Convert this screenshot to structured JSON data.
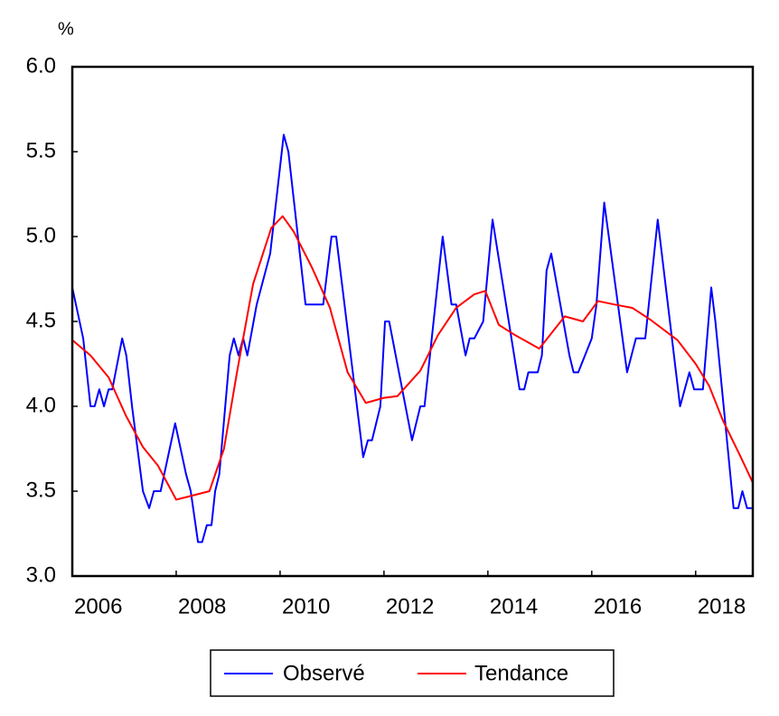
{
  "chart_data": {
    "type": "line",
    "y_unit_label": "%",
    "xlim": [
      2006,
      2019.1
    ],
    "xticks": [
      2006,
      2008,
      2010,
      2012,
      2014,
      2016,
      2018
    ],
    "ylim": [
      3.0,
      6.0
    ],
    "yticks": [
      {
        "value": 3.0,
        "label": "3.0"
      },
      {
        "value": 3.5,
        "label": "3.5"
      },
      {
        "value": 4.0,
        "label": "4.0"
      },
      {
        "value": 4.5,
        "label": "4.5"
      },
      {
        "value": 5.0,
        "label": "5.0"
      },
      {
        "value": 5.5,
        "label": "5.5"
      },
      {
        "value": 6.0,
        "label": "6.0"
      }
    ],
    "grid": false,
    "legend": "bottom",
    "series": [
      {
        "name": "Observé",
        "color": "#0000ff",
        "x": [
          2006.0,
          2006.21,
          2006.35,
          2006.43,
          2006.52,
          2006.61,
          2006.7,
          2006.77,
          2006.96,
          2007.04,
          2007.15,
          2007.36,
          2007.48,
          2007.57,
          2007.7,
          2007.98,
          2008.19,
          2008.28,
          2008.42,
          2008.5,
          2008.59,
          2008.68,
          2008.75,
          2008.83,
          2009.03,
          2009.11,
          2009.2,
          2009.29,
          2009.37,
          2009.55,
          2009.81,
          2010.07,
          2010.16,
          2010.49,
          2010.83,
          2010.99,
          2011.08,
          2011.6,
          2011.69,
          2011.77,
          2011.93,
          2012.02,
          2012.1,
          2012.54,
          2012.7,
          2012.78,
          2013.13,
          2013.3,
          2013.39,
          2013.57,
          2013.65,
          2013.74,
          2013.91,
          2014.09,
          2014.61,
          2014.7,
          2014.78,
          2014.96,
          2015.04,
          2015.13,
          2015.22,
          2015.57,
          2015.65,
          2015.74,
          2016.0,
          2016.09,
          2016.24,
          2016.68,
          2016.85,
          2017.03,
          2017.27,
          2017.7,
          2017.88,
          2017.97,
          2018.14,
          2018.3,
          2018.38,
          2018.73,
          2018.82,
          2018.9,
          2018.99,
          2019.08
        ],
        "values": [
          4.7,
          4.4,
          4.0,
          4.0,
          4.1,
          4.0,
          4.1,
          4.1,
          4.4,
          4.3,
          4.0,
          3.5,
          3.4,
          3.5,
          3.5,
          3.9,
          3.6,
          3.5,
          3.2,
          3.2,
          3.3,
          3.3,
          3.5,
          3.6,
          4.3,
          4.4,
          4.3,
          4.4,
          4.3,
          4.6,
          4.9,
          5.6,
          5.5,
          4.6,
          4.6,
          5.0,
          5.0,
          3.7,
          3.8,
          3.8,
          4.0,
          4.5,
          4.5,
          3.8,
          4.0,
          4.0,
          5.0,
          4.6,
          4.6,
          4.3,
          4.4,
          4.4,
          4.5,
          5.1,
          4.1,
          4.1,
          4.2,
          4.2,
          4.3,
          4.8,
          4.9,
          4.3,
          4.2,
          4.2,
          4.4,
          4.6,
          5.2,
          4.2,
          4.4,
          4.4,
          5.1,
          4.0,
          4.2,
          4.1,
          4.1,
          4.7,
          4.5,
          3.4,
          3.4,
          3.5,
          3.4,
          3.4
        ]
      },
      {
        "name": "Tendance",
        "color": "#ff0000",
        "x": [
          2006.0,
          2006.35,
          2006.7,
          2007.04,
          2007.36,
          2007.65,
          2008.0,
          2008.26,
          2008.64,
          2008.92,
          2009.17,
          2009.48,
          2009.83,
          2010.05,
          2010.26,
          2010.61,
          2010.96,
          2011.3,
          2011.65,
          2012.0,
          2012.26,
          2012.7,
          2013.04,
          2013.39,
          2013.74,
          2013.95,
          2014.21,
          2014.52,
          2014.99,
          2015.3,
          2015.48,
          2015.83,
          2016.12,
          2016.43,
          2016.78,
          2017.13,
          2017.65,
          2018.0,
          2018.26,
          2018.52,
          2018.87,
          2019.1
        ],
        "values": [
          4.39,
          4.3,
          4.17,
          3.94,
          3.76,
          3.65,
          3.45,
          3.47,
          3.5,
          3.75,
          4.2,
          4.72,
          5.05,
          5.12,
          5.03,
          4.82,
          4.58,
          4.2,
          4.02,
          4.05,
          4.06,
          4.21,
          4.42,
          4.58,
          4.66,
          4.68,
          4.48,
          4.42,
          4.34,
          4.46,
          4.53,
          4.5,
          4.62,
          4.6,
          4.58,
          4.51,
          4.39,
          4.25,
          4.12,
          3.92,
          3.7,
          3.55
        ]
      }
    ]
  }
}
